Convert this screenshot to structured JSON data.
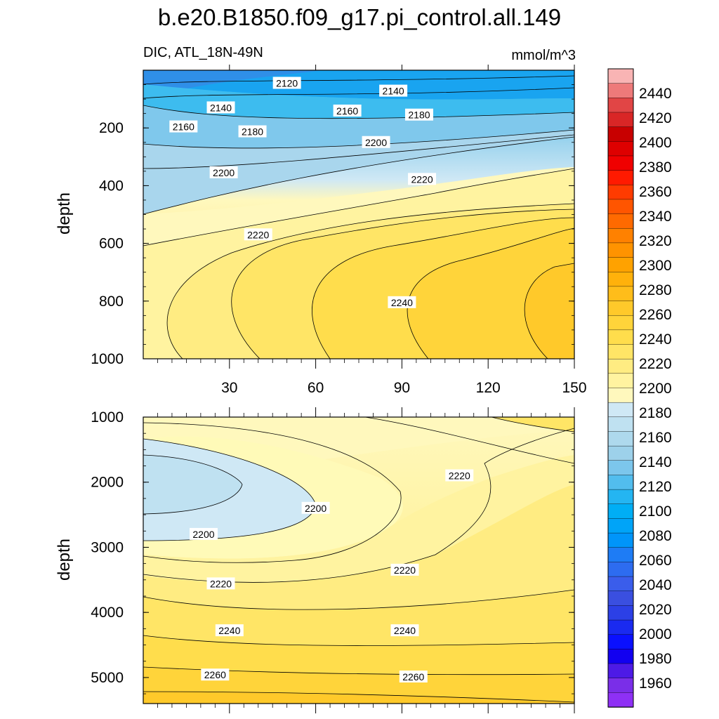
{
  "figure": {
    "title": "b.e20.B1850.f09_g17.pi_control.all.149",
    "variable_region": "DIC, ATL_18N-49N",
    "units": "mmol/m^3",
    "ylabel": "depth"
  },
  "chart_data": [
    {
      "type": "heatmap",
      "panel": "upper",
      "xlabel": "",
      "ylabel": "depth",
      "xlim": [
        0,
        150
      ],
      "ylim": [
        1000,
        0
      ],
      "xticks": [
        30,
        60,
        90,
        120,
        150
      ],
      "yticks": [
        200,
        400,
        600,
        800,
        1000
      ],
      "contour_labels": [
        {
          "text": "2120",
          "x": 50,
          "y": 45
        },
        {
          "text": "2140",
          "x": 87,
          "y": 72
        },
        {
          "text": "2140",
          "x": 27,
          "y": 130
        },
        {
          "text": "2160",
          "x": 71,
          "y": 141
        },
        {
          "text": "2180",
          "x": 96,
          "y": 155
        },
        {
          "text": "2160",
          "x": 14,
          "y": 196
        },
        {
          "text": "2180",
          "x": 38,
          "y": 213
        },
        {
          "text": "2200",
          "x": 81,
          "y": 250
        },
        {
          "text": "2200",
          "x": 28,
          "y": 355
        },
        {
          "text": "2220",
          "x": 97,
          "y": 378
        },
        {
          "text": "2220",
          "x": 40,
          "y": 570
        },
        {
          "text": "2240",
          "x": 90,
          "y": 805
        }
      ]
    },
    {
      "type": "heatmap",
      "panel": "lower",
      "xlabel": "",
      "ylabel": "depth",
      "xlim": [
        0,
        150
      ],
      "ylim": [
        5400,
        1000
      ],
      "yticks": [
        1000,
        2000,
        3000,
        4000,
        5000
      ],
      "contour_labels": [
        {
          "text": "2220",
          "x": 110,
          "y": 1900
        },
        {
          "text": "2200",
          "x": 60,
          "y": 2400
        },
        {
          "text": "2200",
          "x": 21,
          "y": 2800
        },
        {
          "text": "2220",
          "x": 91,
          "y": 3350
        },
        {
          "text": "2220",
          "x": 27,
          "y": 3560
        },
        {
          "text": "2240",
          "x": 30,
          "y": 4280
        },
        {
          "text": "2240",
          "x": 91,
          "y": 4280
        },
        {
          "text": "2260",
          "x": 25,
          "y": 4960
        },
        {
          "text": "2260",
          "x": 94,
          "y": 4990
        }
      ]
    }
  ],
  "colorbar": {
    "labels": [
      "2440",
      "2420",
      "2400",
      "2380",
      "2360",
      "2340",
      "2320",
      "2300",
      "2280",
      "2260",
      "2240",
      "2220",
      "2200",
      "2180",
      "2160",
      "2140",
      "2120",
      "2100",
      "2080",
      "2060",
      "2040",
      "2020",
      "2000",
      "1980",
      "1960"
    ],
    "colors": [
      "#f9b4b4",
      "#ee7a7a",
      "#e14545",
      "#d92626",
      "#c80000",
      "#de0000",
      "#f00000",
      "#ff1a00",
      "#ff3b00",
      "#ff5500",
      "#ff6a00",
      "#ff8100",
      "#ff9300",
      "#ffa200",
      "#ffb10b",
      "#ffbd1a",
      "#ffc92a",
      "#ffd43a",
      "#ffdd4c",
      "#ffe566",
      "#ffec82",
      "#fff3a0",
      "#fff8bd",
      "#cfe8f5",
      "#bfe1f1",
      "#aed9ed",
      "#9dd1ea",
      "#7cc6ec",
      "#52bdee",
      "#24b5f2",
      "#00aef5",
      "#00a4f8",
      "#0095fa",
      "#1e7cf5",
      "#2d6cf0",
      "#3a5deb",
      "#3a4fe0",
      "#2c40e6",
      "#1a2af0",
      "#0a10ff",
      "#1200f0",
      "#4d1ae6",
      "#7a2ee8",
      "#8e30f5"
    ]
  }
}
